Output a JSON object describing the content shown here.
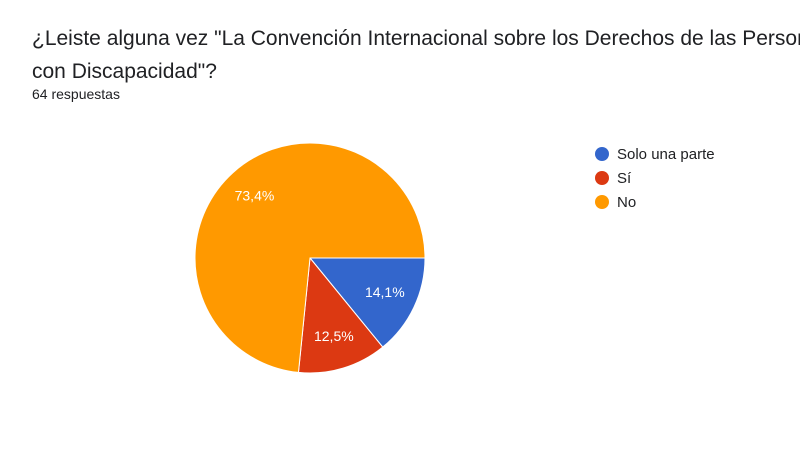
{
  "question": {
    "title": "¿Leiste alguna vez \"La Convención Internacional sobre los Derechos de las Personas con Discapacidad\"?",
    "responses": "64 respuestas"
  },
  "chart_data": {
    "type": "pie",
    "categories": [
      "Solo una parte",
      "Sí",
      "No"
    ],
    "values": [
      14.1,
      12.5,
      73.4
    ],
    "labels": [
      "14,1%",
      "12,5%",
      "73,4%"
    ],
    "colors": [
      "#3366cc",
      "#dc3912",
      "#ff9900"
    ],
    "legend_position": "right",
    "start": "3 o'clock, clockwise"
  }
}
